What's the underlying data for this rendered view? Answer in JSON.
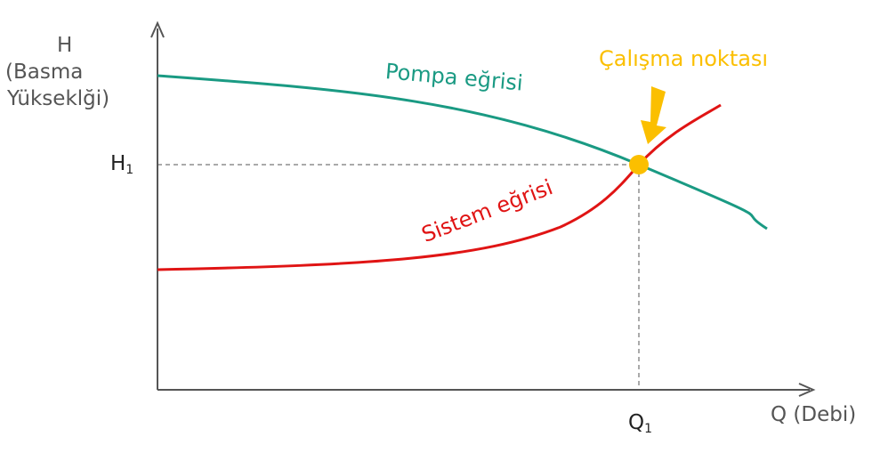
{
  "y_axis": {
    "label_line1": "H",
    "label_line2": "(Basma",
    "label_line3": "Yükseklği)"
  },
  "x_axis": {
    "label": "Q (Debi)"
  },
  "h_tick": {
    "main": "H",
    "sub": "1"
  },
  "q_tick": {
    "main": "Q",
    "sub": "1"
  },
  "pump_curve": {
    "label": "Pompa eğrisi",
    "color": "#1a9a83"
  },
  "system_curve": {
    "label": "Sistem eğrisi",
    "color": "#e01414"
  },
  "operating_point": {
    "label": "Çalışma noktası",
    "color": "#fbbf00"
  },
  "axis_color": "#555555"
}
